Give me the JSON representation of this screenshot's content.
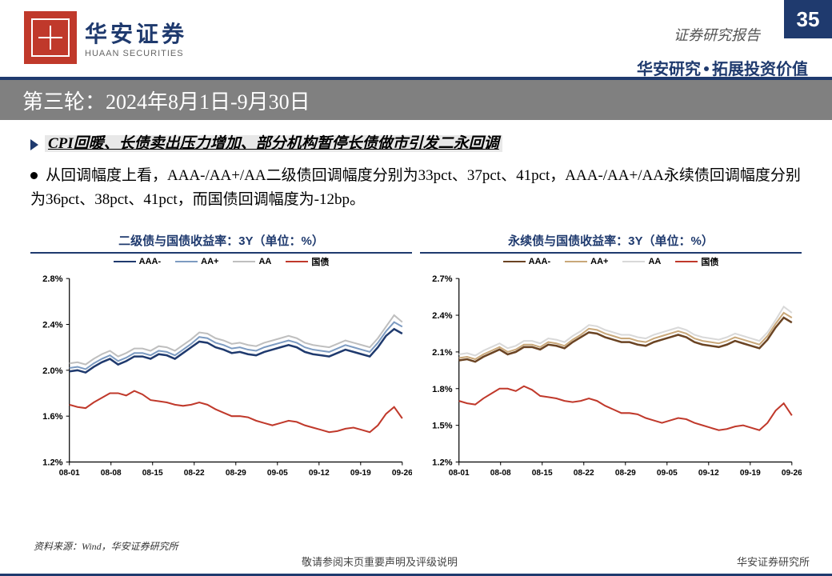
{
  "report_type": "证券研究报告",
  "page_number": "35",
  "logo_cn": "华安证券",
  "logo_en": "HUAAN SECURITIES",
  "tagline_left": "华安研究",
  "tagline_right": "拓展投资价值",
  "title": "第三轮：2024年8月1日-9月30日",
  "bullet_head": "CPI回暖、长债卖出压力增加、部分机构暂停长债做市引发二永回调",
  "bullet_body": "从回调幅度上看，AAA-/AA+/AA二级债回调幅度分别为33pct、37pct、41pct，AAA-/AA+/AA永续债回调幅度分别为36pct、38pct、41pct，而国债回调幅度为-12bp。",
  "source": "资料来源：Wind，华安证券研究所",
  "footer_center": "敬请参阅末页重要声明及评级说明",
  "footer_right": "华安证券研究所",
  "chart1": {
    "type": "line",
    "title": "二级债与国债收益率：3Y（单位：%）",
    "x_labels": [
      "08-01",
      "08-08",
      "08-15",
      "08-22",
      "08-29",
      "09-05",
      "09-12",
      "09-19",
      "09-26"
    ],
    "y_min": 1.2,
    "y_max": 2.8,
    "y_step": 0.4,
    "y_ticks": [
      "1.2%",
      "1.6%",
      "2.0%",
      "2.4%",
      "2.8%"
    ],
    "background": "#ffffff",
    "grid_color": "#000000",
    "axis_color": "#000000",
    "label_fontsize": 11,
    "series": [
      {
        "name": "AAA-",
        "color": "#1f3a6e",
        "width": 2.5,
        "data": [
          1.99,
          2.0,
          1.98,
          2.03,
          2.07,
          2.1,
          2.05,
          2.08,
          2.12,
          2.12,
          2.1,
          2.14,
          2.13,
          2.1,
          2.15,
          2.2,
          2.25,
          2.24,
          2.2,
          2.18,
          2.15,
          2.16,
          2.14,
          2.13,
          2.16,
          2.18,
          2.2,
          2.22,
          2.2,
          2.16,
          2.14,
          2.13,
          2.12,
          2.15,
          2.18,
          2.16,
          2.14,
          2.12,
          2.2,
          2.3,
          2.36,
          2.32
        ]
      },
      {
        "name": "AA+",
        "color": "#7d9bc1",
        "width": 2,
        "data": [
          2.02,
          2.03,
          2.01,
          2.06,
          2.1,
          2.13,
          2.08,
          2.11,
          2.15,
          2.15,
          2.13,
          2.17,
          2.16,
          2.13,
          2.18,
          2.23,
          2.29,
          2.28,
          2.24,
          2.22,
          2.19,
          2.2,
          2.18,
          2.17,
          2.2,
          2.22,
          2.24,
          2.26,
          2.24,
          2.2,
          2.18,
          2.17,
          2.16,
          2.19,
          2.22,
          2.2,
          2.18,
          2.16,
          2.24,
          2.34,
          2.42,
          2.38
        ]
      },
      {
        "name": "AA",
        "color": "#bfbfbf",
        "width": 2,
        "data": [
          2.06,
          2.07,
          2.05,
          2.1,
          2.14,
          2.17,
          2.12,
          2.15,
          2.19,
          2.19,
          2.17,
          2.21,
          2.2,
          2.17,
          2.22,
          2.27,
          2.33,
          2.32,
          2.28,
          2.26,
          2.23,
          2.24,
          2.22,
          2.21,
          2.24,
          2.26,
          2.28,
          2.3,
          2.28,
          2.24,
          2.22,
          2.21,
          2.2,
          2.23,
          2.26,
          2.24,
          2.22,
          2.2,
          2.28,
          2.38,
          2.48,
          2.42
        ]
      },
      {
        "name": "国债",
        "color": "#c0392b",
        "width": 2,
        "data": [
          1.7,
          1.68,
          1.67,
          1.72,
          1.76,
          1.8,
          1.8,
          1.78,
          1.82,
          1.79,
          1.74,
          1.73,
          1.72,
          1.7,
          1.69,
          1.7,
          1.72,
          1.7,
          1.66,
          1.63,
          1.6,
          1.6,
          1.59,
          1.56,
          1.54,
          1.52,
          1.54,
          1.56,
          1.55,
          1.52,
          1.5,
          1.48,
          1.46,
          1.47,
          1.49,
          1.5,
          1.48,
          1.46,
          1.52,
          1.62,
          1.68,
          1.58
        ]
      }
    ]
  },
  "chart2": {
    "type": "line",
    "title": "永续债与国债收益率：3Y（单位：%）",
    "x_labels": [
      "08-01",
      "08-08",
      "08-15",
      "08-22",
      "08-29",
      "09-05",
      "09-12",
      "09-19",
      "09-26"
    ],
    "y_min": 1.2,
    "y_max": 2.7,
    "y_step": 0.3,
    "y_ticks": [
      "1.2%",
      "1.5%",
      "1.8%",
      "2.1%",
      "2.4%",
      "2.7%"
    ],
    "background": "#ffffff",
    "grid_color": "#000000",
    "axis_color": "#000000",
    "label_fontsize": 11,
    "series": [
      {
        "name": "AAA-",
        "color": "#6b4423",
        "width": 2.5,
        "data": [
          2.03,
          2.04,
          2.02,
          2.06,
          2.09,
          2.12,
          2.08,
          2.1,
          2.14,
          2.14,
          2.12,
          2.16,
          2.15,
          2.13,
          2.18,
          2.22,
          2.26,
          2.25,
          2.22,
          2.2,
          2.18,
          2.18,
          2.16,
          2.15,
          2.18,
          2.2,
          2.22,
          2.24,
          2.22,
          2.18,
          2.16,
          2.15,
          2.14,
          2.16,
          2.19,
          2.17,
          2.15,
          2.13,
          2.2,
          2.3,
          2.38,
          2.34
        ]
      },
      {
        "name": "AA+",
        "color": "#c9a87a",
        "width": 2,
        "data": [
          2.05,
          2.06,
          2.04,
          2.08,
          2.11,
          2.14,
          2.1,
          2.12,
          2.16,
          2.16,
          2.14,
          2.18,
          2.17,
          2.15,
          2.2,
          2.24,
          2.29,
          2.28,
          2.25,
          2.23,
          2.21,
          2.21,
          2.19,
          2.18,
          2.21,
          2.23,
          2.25,
          2.27,
          2.25,
          2.21,
          2.19,
          2.18,
          2.17,
          2.19,
          2.22,
          2.2,
          2.18,
          2.16,
          2.23,
          2.33,
          2.42,
          2.38
        ]
      },
      {
        "name": "AA",
        "color": "#d9d9d9",
        "width": 2,
        "data": [
          2.08,
          2.09,
          2.07,
          2.11,
          2.14,
          2.17,
          2.13,
          2.15,
          2.19,
          2.19,
          2.17,
          2.21,
          2.2,
          2.18,
          2.23,
          2.27,
          2.32,
          2.31,
          2.28,
          2.26,
          2.24,
          2.24,
          2.22,
          2.21,
          2.24,
          2.26,
          2.28,
          2.3,
          2.28,
          2.24,
          2.22,
          2.21,
          2.2,
          2.22,
          2.25,
          2.23,
          2.21,
          2.19,
          2.26,
          2.36,
          2.47,
          2.42
        ]
      },
      {
        "name": "国债",
        "color": "#c0392b",
        "width": 2,
        "data": [
          1.7,
          1.68,
          1.67,
          1.72,
          1.76,
          1.8,
          1.8,
          1.78,
          1.82,
          1.79,
          1.74,
          1.73,
          1.72,
          1.7,
          1.69,
          1.7,
          1.72,
          1.7,
          1.66,
          1.63,
          1.6,
          1.6,
          1.59,
          1.56,
          1.54,
          1.52,
          1.54,
          1.56,
          1.55,
          1.52,
          1.5,
          1.48,
          1.46,
          1.47,
          1.49,
          1.5,
          1.48,
          1.46,
          1.52,
          1.62,
          1.68,
          1.58
        ]
      }
    ]
  }
}
